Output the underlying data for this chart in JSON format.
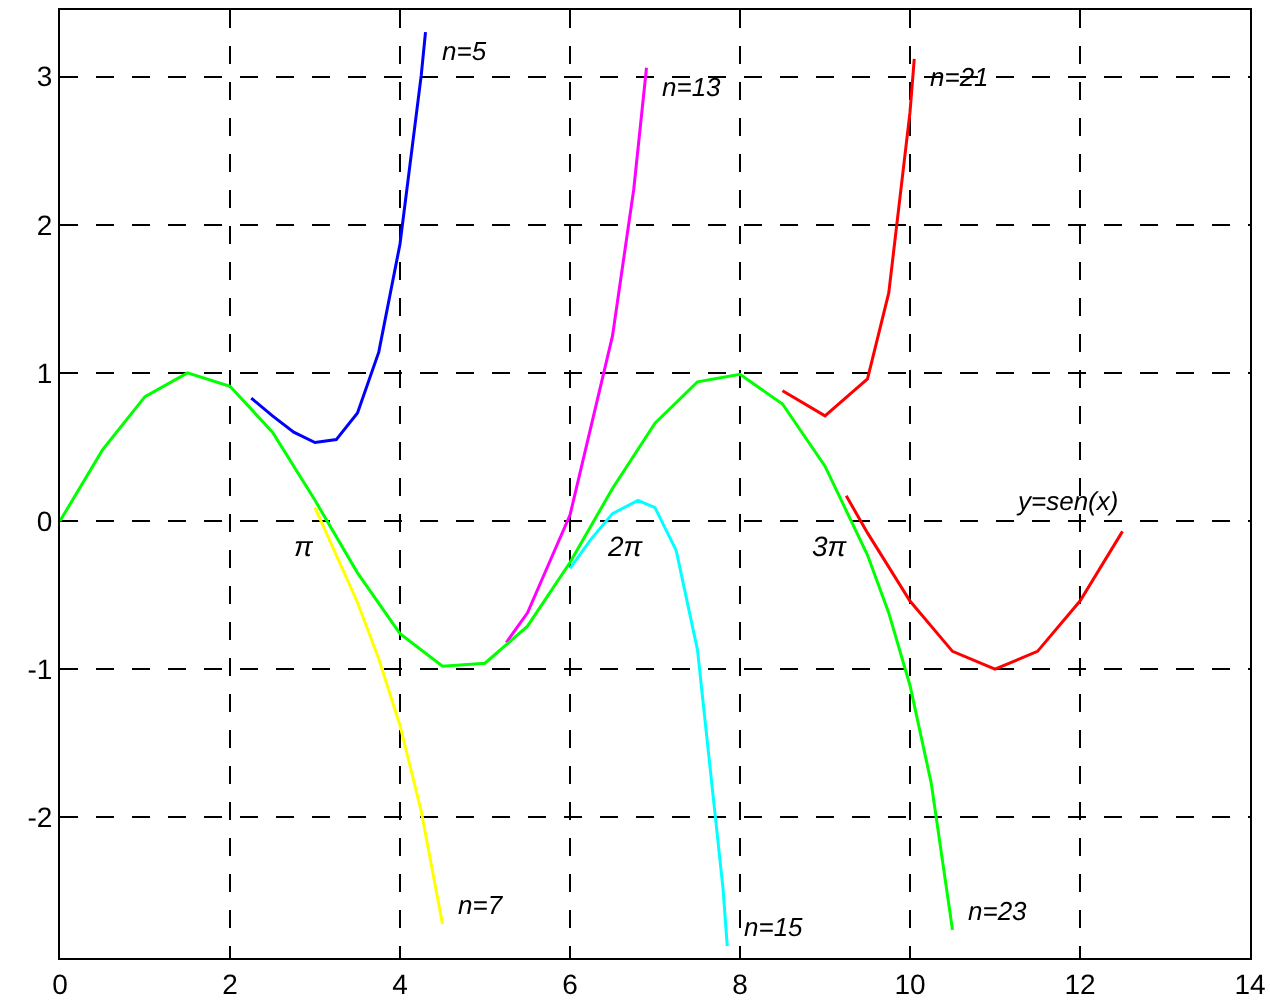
{
  "chart_data": {
    "type": "line",
    "xlim": [
      0,
      14
    ],
    "xticks": [
      0,
      2,
      4,
      6,
      8,
      10,
      12,
      14
    ],
    "ylim": [
      -2.95,
      3.45
    ],
    "yticks": [
      -2,
      -1,
      0,
      1,
      2,
      3
    ],
    "grid": true,
    "series": [
      {
        "name": "n=5",
        "color": "#0000ff",
        "x": [
          2.25,
          2.5,
          2.75,
          3,
          3.25,
          3.5,
          3.75,
          4,
          4.25,
          4.3
        ],
        "values": [
          0.83,
          0.71,
          0.6,
          0.53,
          0.55,
          0.73,
          1.14,
          1.87,
          3.01,
          3.3
        ]
      },
      {
        "name": "n=7",
        "color": "#ffff00",
        "x": [
          3,
          3.5,
          3.75,
          4,
          4.25,
          4.5
        ],
        "values": [
          0.09,
          -0.55,
          -0.93,
          -1.38,
          -1.96,
          -2.72
        ]
      },
      {
        "name": "n=13",
        "color": "#ff00ff",
        "x": [
          5.25,
          5.5,
          6,
          6.5,
          6.75,
          6.9
        ],
        "values": [
          -0.82,
          -0.62,
          0.04,
          1.25,
          2.24,
          3.06
        ]
      },
      {
        "name": "n=15",
        "color": "#00ffff",
        "x": [
          6,
          6.25,
          6.5,
          6.8,
          7,
          7.25,
          7.5,
          7.8,
          7.85
        ],
        "values": [
          -0.32,
          -0.12,
          0.05,
          0.14,
          0.09,
          -0.2,
          -0.87,
          -2.48,
          -2.87
        ]
      },
      {
        "name": "n=21",
        "color": "#ff0000",
        "x": [
          8.5,
          9,
          9.5,
          9.75,
          10,
          10.05
        ],
        "values": [
          0.88,
          0.71,
          0.96,
          1.54,
          2.76,
          3.12
        ]
      },
      {
        "name": "y=sen(x)",
        "color": "#ff0000",
        "x": [
          9.25,
          9.5,
          10,
          10.5,
          11,
          11.5,
          12,
          12.5
        ],
        "values": [
          0.17,
          -0.08,
          -0.54,
          -0.88,
          -1.0,
          -0.88,
          -0.54,
          -0.07
        ]
      },
      {
        "name": "n=23",
        "color": "#00ff00",
        "x": [
          0,
          0.5,
          1,
          1.5,
          2,
          2.5,
          3,
          3.5,
          4,
          4.5,
          5,
          5.5,
          6,
          6.5,
          7,
          7.5,
          8,
          8.5,
          9,
          9.5,
          9.75,
          10,
          10.25,
          10.5
        ],
        "values": [
          0,
          0.48,
          0.84,
          1.0,
          0.91,
          0.6,
          0.14,
          -0.35,
          -0.76,
          -0.98,
          -0.96,
          -0.71,
          -0.28,
          0.22,
          0.66,
          0.94,
          0.99,
          0.79,
          0.37,
          -0.23,
          -0.62,
          -1.11,
          -1.77,
          -2.76
        ]
      }
    ],
    "annotations": [
      {
        "text": "π",
        "x": 3.14,
        "y": 0
      },
      {
        "text": "2π",
        "x": 6.28,
        "y": 0
      },
      {
        "text": "3π",
        "x": 9.42,
        "y": 0
      }
    ]
  }
}
